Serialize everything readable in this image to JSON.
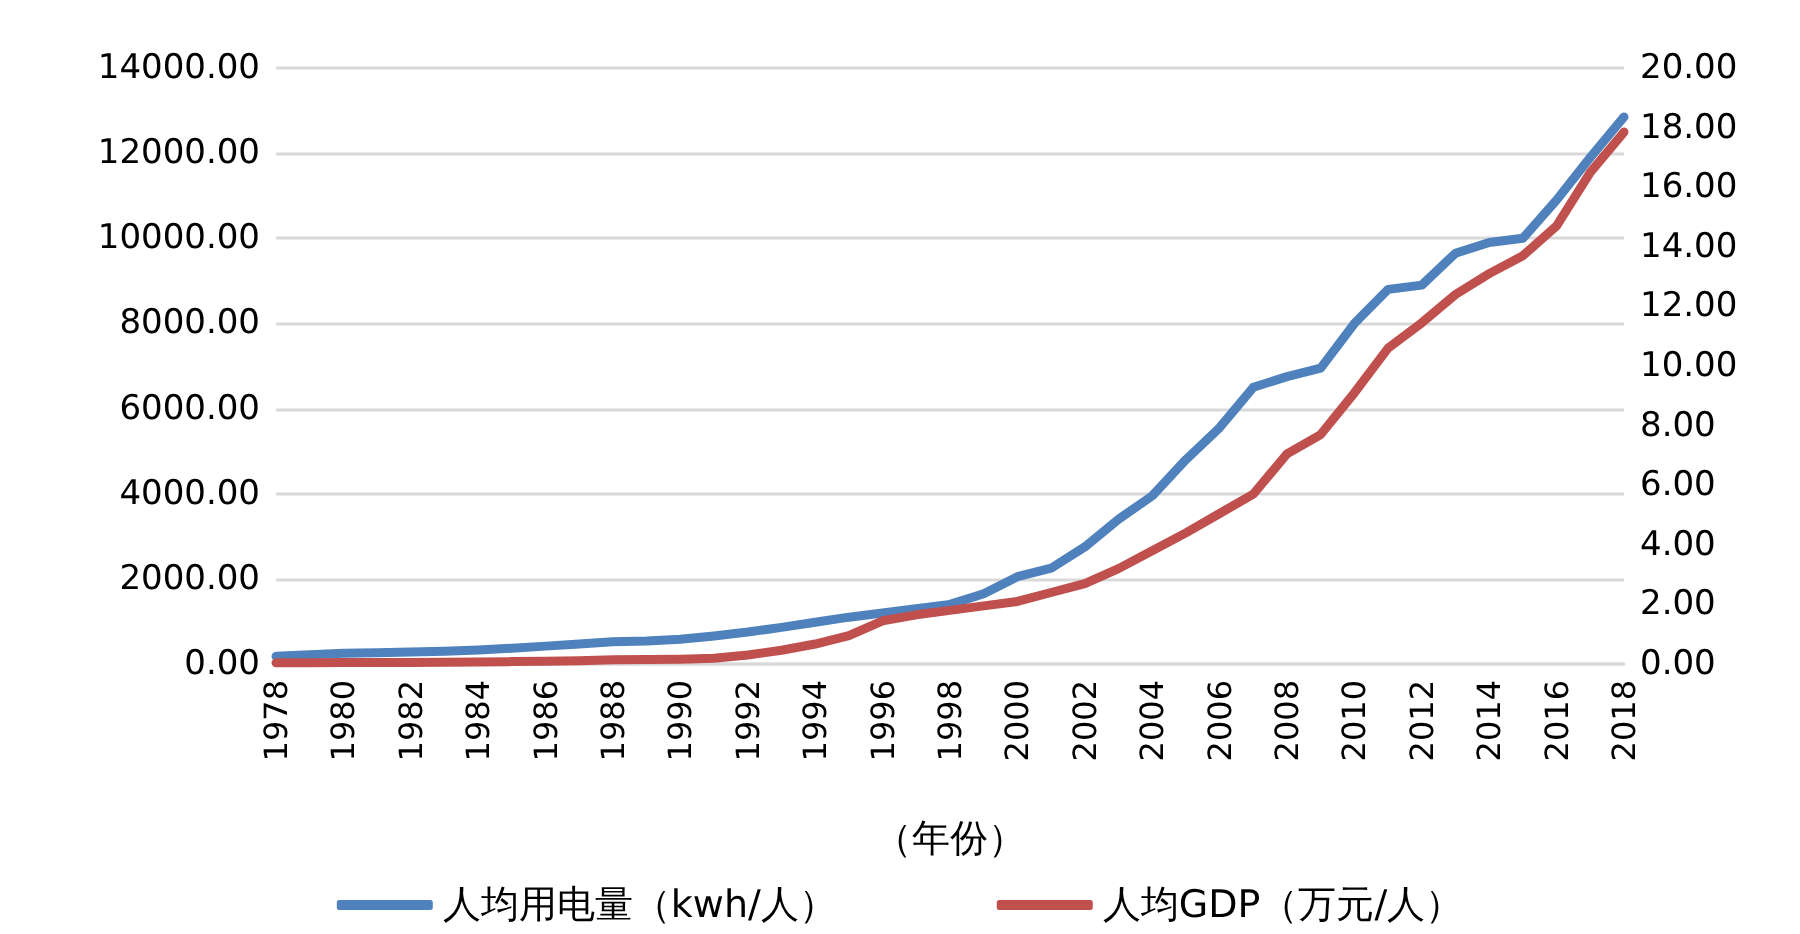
{
  "chart_data": {
    "type": "line",
    "xlabel": "（年份）",
    "categories": [
      "1978",
      null,
      "1980",
      null,
      "1982",
      null,
      "1984",
      null,
      "1986",
      null,
      "1988",
      null,
      "1990",
      null,
      "1992",
      null,
      "1994",
      null,
      "1996",
      null,
      "1998",
      null,
      "2000",
      null,
      "2002",
      null,
      "2004",
      null,
      "2006",
      null,
      "2008",
      null,
      "2010",
      null,
      "2012",
      null,
      "2014",
      null,
      "2016",
      null,
      "2018"
    ],
    "series": [
      {
        "name": "人均用电量（kwh/人）",
        "color": "#4f81bd",
        "values": [
          180,
          220,
          250,
          265,
          280,
          300,
          330,
          370,
          420,
          470,
          520,
          540,
          580,
          660,
          750,
          860,
          980,
          1100,
          1200,
          1300,
          1400,
          1650,
          2050,
          2250,
          2750,
          3400,
          3950,
          4800,
          5550,
          6500,
          6750,
          6950,
          8000,
          8800,
          8900,
          9650,
          9900,
          10000,
          10900,
          11900,
          12850
        ]
      },
      {
        "name": "人均GDP（万元/人）",
        "color": "#c0504d",
        "axis": "y2",
        "values": [
          0.04,
          0.04,
          0.05,
          0.05,
          0.05,
          0.06,
          0.07,
          0.08,
          0.09,
          0.11,
          0.14,
          0.15,
          0.16,
          0.19,
          0.3,
          0.46,
          0.67,
          0.95,
          1.45,
          1.65,
          1.8,
          1.95,
          2.1,
          2.4,
          2.7,
          3.2,
          3.8,
          4.4,
          5.05,
          5.7,
          7.05,
          7.7,
          9.1,
          10.6,
          11.45,
          12.4,
          13.1,
          13.7,
          14.7,
          16.5,
          17.85
        ]
      }
    ],
    "ylim": [
      0,
      14000
    ],
    "yticks": [
      {
        "value": 0,
        "label": "0.00"
      },
      {
        "value": 2000,
        "label": "2000.00"
      },
      {
        "value": 4000,
        "label": "4000.00"
      },
      {
        "value": 6000,
        "label": "6000.00"
      },
      {
        "value": 8000,
        "label": "8000.00"
      },
      {
        "value": 10000,
        "label": "10000.00"
      },
      {
        "value": 12000,
        "label": "12000.00"
      },
      {
        "value": 14000,
        "label": "14000.00"
      }
    ],
    "y2lim": [
      0,
      20
    ],
    "y2ticks": [
      {
        "value": 0,
        "label": "0.00"
      },
      {
        "value": 2,
        "label": "2.00"
      },
      {
        "value": 4,
        "label": "4.00"
      },
      {
        "value": 6,
        "label": "6.00"
      },
      {
        "value": 8,
        "label": "8.00"
      },
      {
        "value": 10,
        "label": "10.00"
      },
      {
        "value": 12,
        "label": "12.00"
      },
      {
        "value": 14,
        "label": "14.00"
      },
      {
        "value": 16,
        "label": "16.00"
      },
      {
        "value": 18,
        "label": "18.00"
      },
      {
        "value": 20,
        "label": "20.00"
      }
    ],
    "grid": "y",
    "legend": "bottom",
    "marker": "none",
    "line_style": "solid"
  }
}
